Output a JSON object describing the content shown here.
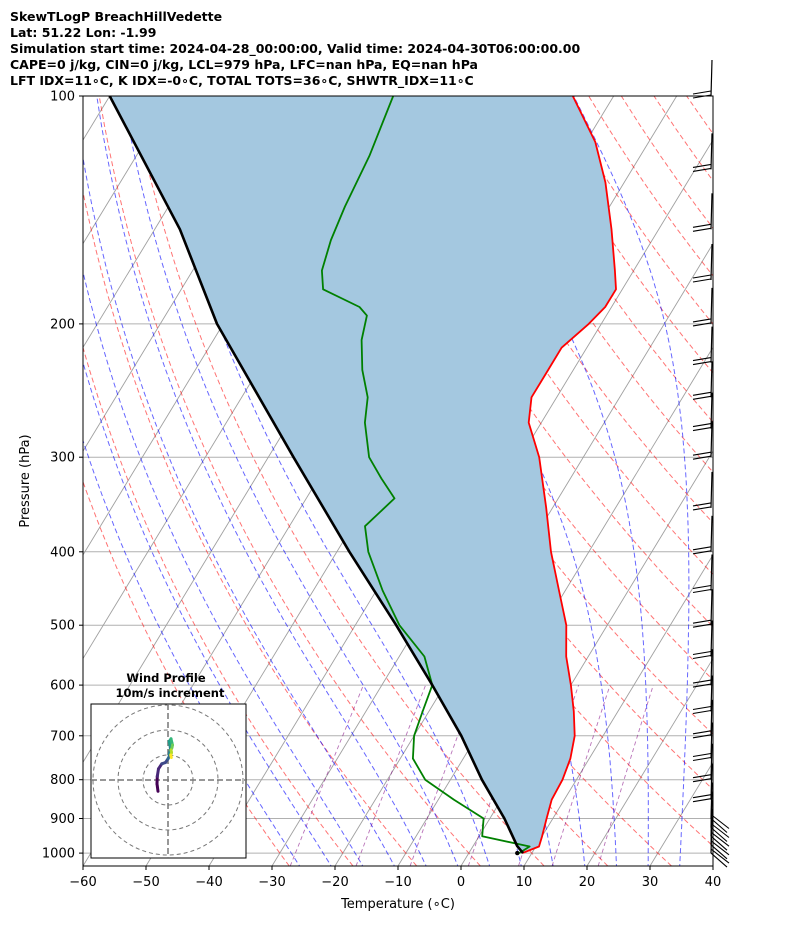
{
  "header": {
    "line1": "SkewTLogP BreachHillVedette",
    "line2": "Lat: 51.22   Lon: -1.99",
    "line3": "Simulation start time: 2024-04-28_00:00:00, Valid time: 2024-04-30T06:00:00.00",
    "line4": "CAPE=0 j/kg, CIN=0 j/kg, LCL=979 hPa, LFC=nan hPa, EQ=nan hPa",
    "line5": "LFT IDX=11∘C, K IDX=-0∘C, TOTAL TOTS=36∘C, SHWTR_IDX=11∘C"
  },
  "chart_data": [
    {
      "type": "line",
      "subtype": "skew-t log-p",
      "xlabel": "Temperature (∘C)",
      "ylabel": "Pressure (hPa)",
      "xlim": [
        -60,
        40
      ],
      "ylim": [
        1040,
        100
      ],
      "y_scale": "log",
      "skew_deg_C_per_log_decade": 73,
      "x_ticks": [
        -60,
        -50,
        -40,
        -30,
        -20,
        -10,
        0,
        10,
        20,
        30,
        40
      ],
      "y_ticks": [
        100,
        200,
        300,
        400,
        500,
        600,
        700,
        800,
        900,
        1000
      ],
      "grid": true,
      "colors": {
        "temperature": "#ff0000",
        "dewpoint": "#008000",
        "parcel": "#000000",
        "shade": "#a4c8e0",
        "dry_adiabat": "#ff0000",
        "moist_adiabat": "#0000ff",
        "mixing_ratio": "#800080",
        "isotherm": "#a0a0a0"
      },
      "series": [
        {
          "key": "temperature",
          "points": [
            {
              "p": 1000,
              "t": 8.5
            },
            {
              "p": 980,
              "t": 10.5
            },
            {
              "p": 950,
              "t": 10
            },
            {
              "p": 900,
              "t": 9
            },
            {
              "p": 850,
              "t": 8
            },
            {
              "p": 800,
              "t": 7.8
            },
            {
              "p": 750,
              "t": 7
            },
            {
              "p": 700,
              "t": 5.5
            },
            {
              "p": 650,
              "t": 3
            },
            {
              "p": 600,
              "t": 0
            },
            {
              "p": 550,
              "t": -3.5
            },
            {
              "p": 500,
              "t": -6.5
            },
            {
              "p": 450,
              "t": -11
            },
            {
              "p": 400,
              "t": -16
            },
            {
              "p": 350,
              "t": -21
            },
            {
              "p": 300,
              "t": -27
            },
            {
              "p": 270,
              "t": -32
            },
            {
              "p": 250,
              "t": -34
            },
            {
              "p": 230,
              "t": -34
            },
            {
              "p": 215,
              "t": -34
            },
            {
              "p": 200,
              "t": -32
            },
            {
              "p": 190,
              "t": -31
            },
            {
              "p": 180,
              "t": -31
            },
            {
              "p": 170,
              "t": -33
            },
            {
              "p": 150,
              "t": -37.5
            },
            {
              "p": 130,
              "t": -43
            },
            {
              "p": 115,
              "t": -48.5
            },
            {
              "p": 100,
              "t": -56.5
            }
          ]
        },
        {
          "key": "dewpoint",
          "points": [
            {
              "p": 1000,
              "t": 8
            },
            {
              "p": 980,
              "t": 9
            },
            {
              "p": 950,
              "t": 0.5
            },
            {
              "p": 900,
              "t": -1
            },
            {
              "p": 850,
              "t": -7.5
            },
            {
              "p": 800,
              "t": -14
            },
            {
              "p": 750,
              "t": -18
            },
            {
              "p": 700,
              "t": -20
            },
            {
              "p": 650,
              "t": -21
            },
            {
              "p": 600,
              "t": -22
            },
            {
              "p": 550,
              "t": -26
            },
            {
              "p": 500,
              "t": -33
            },
            {
              "p": 450,
              "t": -39
            },
            {
              "p": 400,
              "t": -45
            },
            {
              "p": 370,
              "t": -48
            },
            {
              "p": 340,
              "t": -46
            },
            {
              "p": 320,
              "t": -50
            },
            {
              "p": 300,
              "t": -54
            },
            {
              "p": 270,
              "t": -58
            },
            {
              "p": 250,
              "t": -60
            },
            {
              "p": 230,
              "t": -63.5
            },
            {
              "p": 210,
              "t": -66.5
            },
            {
              "p": 195,
              "t": -68
            },
            {
              "p": 190,
              "t": -70
            },
            {
              "p": 180,
              "t": -77.5
            },
            {
              "p": 170,
              "t": -79.5
            },
            {
              "p": 155,
              "t": -81
            },
            {
              "p": 140,
              "t": -82
            },
            {
              "p": 120,
              "t": -83
            },
            {
              "p": 100,
              "t": -85
            }
          ]
        },
        {
          "key": "parcel",
          "points": [
            {
              "p": 1000,
              "t": 8.6
            },
            {
              "p": 979,
              "t": 7
            },
            {
              "p": 900,
              "t": 2.3
            },
            {
              "p": 800,
              "t": -5
            },
            {
              "p": 700,
              "t": -12.5
            },
            {
              "p": 600,
              "t": -22
            },
            {
              "p": 500,
              "t": -33.5
            },
            {
              "p": 400,
              "t": -48
            },
            {
              "p": 300,
              "t": -66
            },
            {
              "p": 200,
              "t": -91
            },
            {
              "p": 150,
              "t": -106
            },
            {
              "p": 100,
              "t": -130
            }
          ]
        }
      ],
      "wind_barbs_pressures": [
        1000,
        975,
        950,
        925,
        900,
        850,
        800,
        750,
        700,
        650,
        600,
        550,
        500,
        450,
        400,
        350,
        300,
        275,
        250,
        225,
        200,
        175,
        150,
        125,
        100
      ],
      "inset": {
        "type": "hodograph",
        "title_line1": "Wind Profile",
        "title_line2": "10m/s increment",
        "ring_increment_ms": 10,
        "rings": [
          10,
          20,
          30
        ],
        "colormap": "viridis",
        "points": [
          {
            "u": -4,
            "v": -4.5
          },
          {
            "u": -4.4,
            "v": -1.5
          },
          {
            "u": -4.3,
            "v": 1.5
          },
          {
            "u": -3.8,
            "v": 4.5
          },
          {
            "u": -2.5,
            "v": 6.5
          },
          {
            "u": -1,
            "v": 7
          },
          {
            "u": 0,
            "v": 8.5
          },
          {
            "u": 0.5,
            "v": 9.5
          },
          {
            "u": 0.5,
            "v": 10.5
          },
          {
            "u": 1,
            "v": 12.5
          },
          {
            "u": 0.8,
            "v": 14
          },
          {
            "u": 0.5,
            "v": 15.5
          },
          {
            "u": 1.2,
            "v": 16.5
          },
          {
            "u": 1.5,
            "v": 15
          },
          {
            "u": 1.8,
            "v": 14
          },
          {
            "u": 1.6,
            "v": 13
          },
          {
            "u": 1.2,
            "v": 12
          },
          {
            "u": 1.4,
            "v": 11
          },
          {
            "u": 1.1,
            "v": 10
          },
          {
            "u": 1.3,
            "v": 9
          }
        ]
      }
    }
  ]
}
